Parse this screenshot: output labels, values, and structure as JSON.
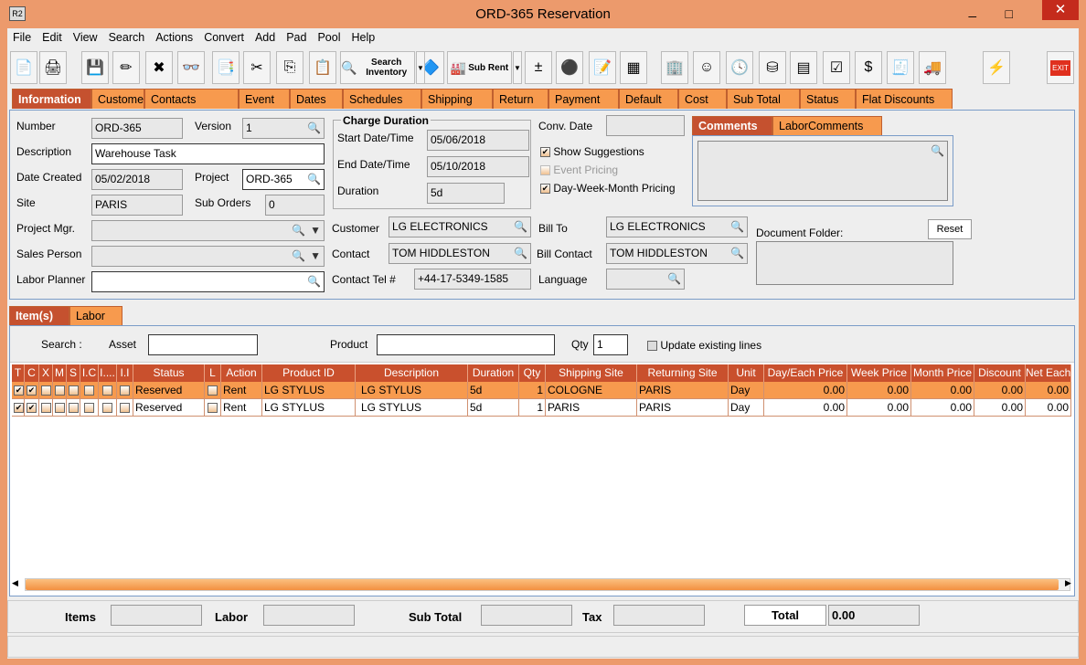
{
  "window": {
    "title": "ORD-365 Reservation",
    "app_icon": "R2"
  },
  "menu": [
    "File",
    "Edit",
    "View",
    "Search",
    "Actions",
    "Convert",
    "Add",
    "Pad",
    "Pool",
    "Help"
  ],
  "toolbar": {
    "search_inventory": "Search Inventory",
    "sub_rent": "Sub Rent",
    "exit": "EXIT"
  },
  "tabs": [
    "Information",
    "Customer",
    "Contacts",
    "Event",
    "Dates",
    "Schedules",
    "Shipping",
    "Return",
    "Payment",
    "Default",
    "Cost",
    "Sub Total",
    "Status",
    "Flat Discounts"
  ],
  "info": {
    "number_label": "Number",
    "number": "ORD-365",
    "version_label": "Version",
    "version": "1",
    "description_label": "Description",
    "description": "Warehouse Task",
    "date_created_label": "Date Created",
    "date_created": "05/02/2018",
    "project_label": "Project",
    "project": "ORD-365",
    "site_label": "Site",
    "site": "PARIS",
    "sub_orders_label": "Sub Orders",
    "sub_orders": "0",
    "project_mgr_label": "Project Mgr.",
    "sales_person_label": "Sales Person",
    "labor_planner_label": "Labor Planner",
    "charge_duration_title": "Charge Duration",
    "start_label": "Start Date/Time",
    "start": "05/06/2018",
    "end_label": "End Date/Time",
    "end": "05/10/2018",
    "duration_label": "Duration",
    "duration": "5d",
    "customer_label": "Customer",
    "customer": "LG ELECTRONICS",
    "contact_label": "Contact",
    "contact": "TOM HIDDLESTON",
    "tel_label": "Contact Tel #",
    "tel": "+44-17-5349-1585",
    "conv_date_label": "Conv. Date",
    "show_suggestions": "Show Suggestions",
    "event_pricing": "Event Pricing",
    "dwm_pricing": "Day-Week-Month Pricing",
    "bill_to_label": "Bill To",
    "bill_to": "LG ELECTRONICS",
    "bill_contact_label": "Bill Contact",
    "bill_contact": "TOM HIDDLESTON",
    "language_label": "Language",
    "comments_tabs": [
      "Comments",
      "LaborComments"
    ],
    "document_folder_label": "Document Folder:",
    "reset": "Reset"
  },
  "items_tabs": [
    "Item(s)",
    "Labor"
  ],
  "search": {
    "label": "Search :",
    "asset_label": "Asset",
    "product_label": "Product",
    "qty_label": "Qty",
    "qty": "1",
    "update_existing": "Update existing lines"
  },
  "grid": {
    "columns": [
      "T",
      "C",
      "X",
      "M",
      "S",
      "I.C",
      "I....",
      "I.I",
      "Status",
      "L",
      "Action",
      "Product ID",
      "Description",
      "Duration",
      "Qty",
      "Shipping Site",
      "Returning Site",
      "Unit",
      "Day/Each Price",
      "Week Price",
      "Month Price",
      "Discount",
      "Net Each"
    ],
    "rows": [
      {
        "t": true,
        "c": true,
        "status": "Reserved",
        "action": "Rent",
        "product_id": "LG STYLUS",
        "description": "LG STYLUS",
        "duration": "5d",
        "qty": "1",
        "shipping": "COLOGNE",
        "returning": "PARIS",
        "unit": "Day",
        "day": "0.00",
        "week": "0.00",
        "month": "0.00",
        "discount": "0.00",
        "net": "0.00"
      },
      {
        "t": true,
        "c": true,
        "status": "Reserved",
        "action": "Rent",
        "product_id": "LG STYLUS",
        "description": "LG STYLUS",
        "duration": "5d",
        "qty": "1",
        "shipping": "PARIS",
        "returning": "PARIS",
        "unit": "Day",
        "day": "0.00",
        "week": "0.00",
        "month": "0.00",
        "discount": "0.00",
        "net": "0.00"
      }
    ]
  },
  "footer": {
    "items": "Items",
    "labor": "Labor",
    "sub_total": "Sub Total",
    "tax": "Tax",
    "total": "Total",
    "total_value": "0.00"
  },
  "colors": {
    "accent": "#f79a4e",
    "active_tab": "#c5512f",
    "highlight": "#c00000"
  }
}
